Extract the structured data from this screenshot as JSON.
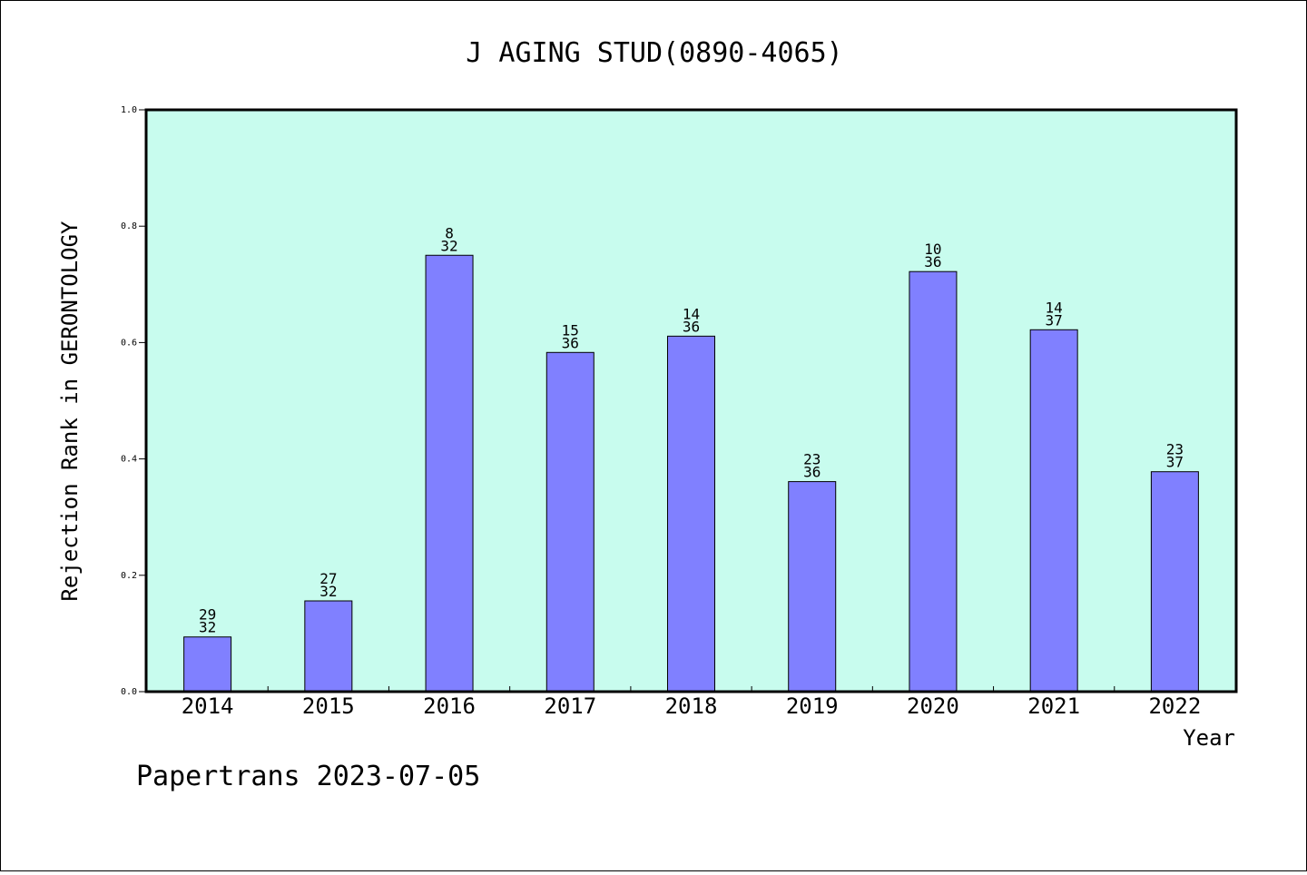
{
  "chart_data": {
    "type": "bar",
    "title": "J AGING STUD(0890-4065)",
    "ylabel": "Rejection Rank in GERONTOLOGY",
    "xlabel": "Year",
    "ylim": [
      0.0,
      1.0
    ],
    "yticks": [
      "0.0",
      "0.2",
      "0.4",
      "0.6",
      "0.8",
      "1.0"
    ],
    "categories": [
      "2014",
      "2015",
      "2016",
      "2017",
      "2018",
      "2019",
      "2020",
      "2021",
      "2022"
    ],
    "values": [
      0.094,
      0.156,
      0.75,
      0.583,
      0.611,
      0.361,
      0.722,
      0.622,
      0.378
    ],
    "labels": [
      {
        "top": "29",
        "bottom": "32"
      },
      {
        "top": "27",
        "bottom": "32"
      },
      {
        "top": "8",
        "bottom": "32"
      },
      {
        "top": "15",
        "bottom": "36"
      },
      {
        "top": "14",
        "bottom": "36"
      },
      {
        "top": "23",
        "bottom": "36"
      },
      {
        "top": "10",
        "bottom": "36"
      },
      {
        "top": "14",
        "bottom": "37"
      },
      {
        "top": "23",
        "bottom": "37"
      }
    ],
    "grid": false,
    "colors": {
      "plot_background": "#c8fcee",
      "bar_fill": "#8080ff",
      "bar_stroke": "#000000"
    }
  },
  "footer": "Papertrans 2023-07-05"
}
